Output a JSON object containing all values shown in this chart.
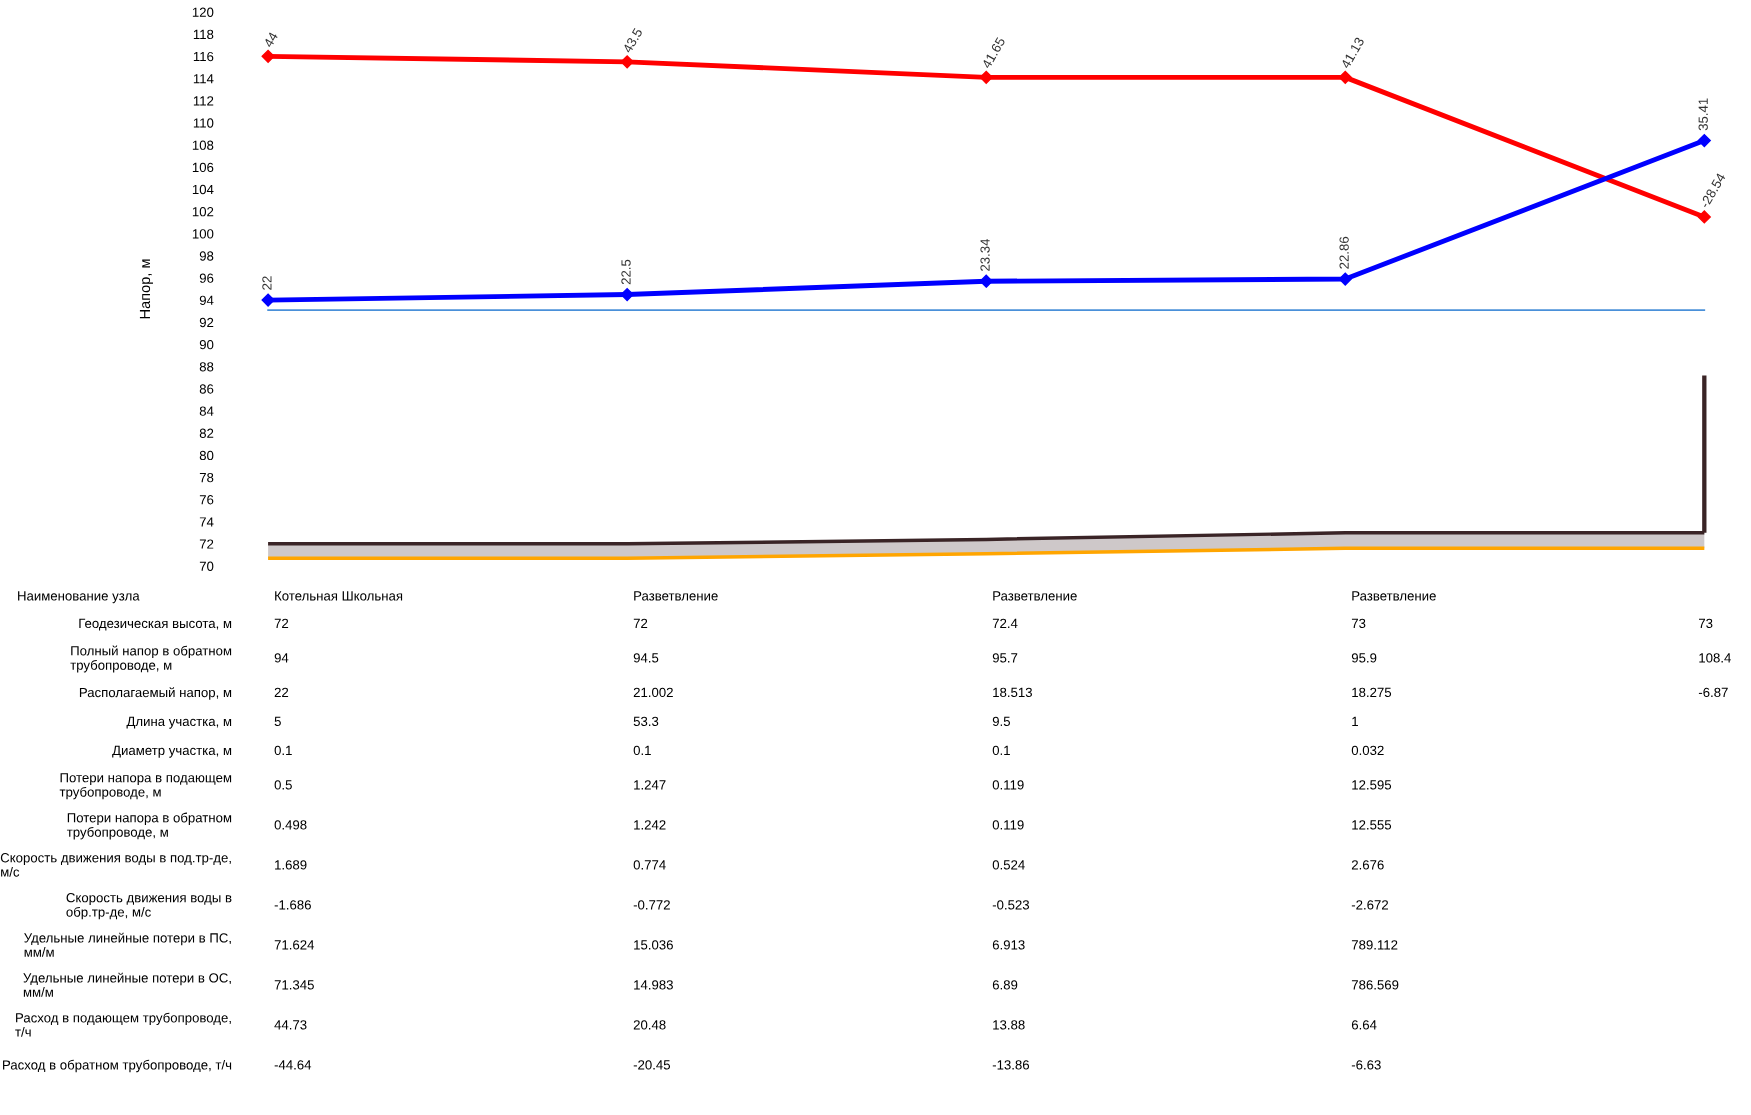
{
  "chart_data": [
    {
      "type": "line",
      "ylabel": "Напор, м",
      "categories": [
        null,
        null,
        null,
        null,
        null
      ],
      "ylim": [
        70,
        120
      ],
      "yticks": [
        70,
        72,
        74,
        76,
        78,
        80,
        82,
        84,
        86,
        88,
        90,
        92,
        94,
        96,
        98,
        100,
        102,
        104,
        106,
        108,
        110,
        112,
        114,
        116,
        118,
        120
      ],
      "grid": false,
      "series": [
        {
          "type": "line",
          "color": "#ff0000",
          "marker": "diamond",
          "values": [
            116,
            115.5,
            114.1,
            114.1,
            101.5
          ]
        },
        {
          "type": "line",
          "color": "#0000ff",
          "marker": "diamond",
          "values": [
            94,
            94.5,
            95.7,
            95.9,
            108.4
          ]
        },
        {
          "type": "line",
          "color": "#ffa500",
          "marker": "none",
          "values": [
            70.7,
            70.7,
            71.1,
            71.6,
            71.6
          ]
        },
        {
          "type": "line",
          "color": "#3a2426",
          "marker": "none",
          "values": [
            72,
            72,
            72.4,
            73,
            73
          ],
          "lower": [
            70.7,
            70.7,
            71.1,
            71.6,
            71.6
          ],
          "upper": [
            72,
            72,
            72.4,
            73,
            73
          ]
        },
        {
          "type": "bar",
          "color": "#3a2426",
          "values": [
            null,
            null,
            null,
            null,
            14.2
          ],
          "base": [
            null,
            null,
            null,
            null,
            73
          ]
        }
      ],
      "ref_lines": [
        {
          "axis": "y",
          "value": 93.1,
          "color": "#4a90d9"
        }
      ],
      "annotations": [
        "44",
        "43.5",
        "41.65",
        "41.13",
        "-28.54",
        "22",
        "22.5",
        "23.34",
        "22.86",
        "35.41"
      ]
    },
    {
      "type": "heatmap",
      "xlabel": "Наименование узла",
      "data_labels": true,
      "categories": [
        "Котельная Школьная",
        "Разветвление",
        "Разветвление",
        "Разветвление",
        null
      ],
      "y_categories": [
        "Геодезическая высота, м",
        "Полный напор в обратном трубопроводе, м",
        "Располагаемый напор, м",
        "Длина участка, м",
        "Диаметр участка, м",
        "Потери напора в подающем трубопроводе, м",
        "Потери напора в обратном трубопроводе, м",
        "Скорость движения воды в под.тр-де, м/с",
        "Скорость движения воды в обр.тр-де, м/с",
        "Удельные линейные потери в ПС, мм/м",
        "Удельные линейные потери в ОС, мм/м",
        "Расход в подающем трубопроводе, т/ч",
        "Расход в обратном трубопроводе, т/ч"
      ],
      "cells": [
        [
          72,
          72,
          72.4,
          73,
          73
        ],
        [
          94,
          94.5,
          95.7,
          95.9,
          108.4
        ],
        [
          22,
          21.002,
          18.513,
          18.275,
          -6.87
        ],
        [
          5,
          53.3,
          9.5,
          1,
          null
        ],
        [
          0.1,
          0.1,
          0.1,
          0.032,
          null
        ],
        [
          0.5,
          1.247,
          0.119,
          12.595,
          null
        ],
        [
          0.498,
          1.242,
          0.119,
          12.555,
          null
        ],
        [
          1.689,
          0.774,
          0.524,
          2.676,
          null
        ],
        [
          -1.686,
          -0.772,
          -0.523,
          -2.672,
          null
        ],
        [
          71.624,
          15.036,
          6.913,
          789.112,
          null
        ],
        [
          71.345,
          14.983,
          6.89,
          786.569,
          null
        ],
        [
          44.73,
          20.48,
          13.88,
          6.64,
          null
        ],
        [
          -44.64,
          -20.45,
          -13.86,
          -6.63,
          null
        ]
      ]
    }
  ]
}
